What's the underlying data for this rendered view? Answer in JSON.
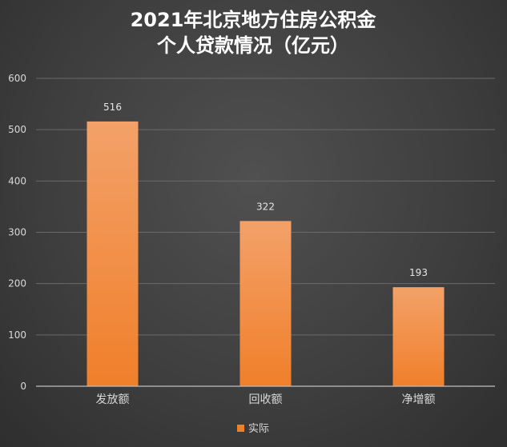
{
  "chart_data": {
    "type": "bar",
    "title_lines": [
      "2021年北京地方住房公积金",
      "个人贷款情况（亿元）"
    ],
    "categories": [
      "发放额",
      "回收额",
      "净增额"
    ],
    "series": [
      {
        "name": "实际",
        "values": [
          516,
          322,
          193
        ]
      }
    ],
    "ylim": [
      0,
      600
    ],
    "yticks": [
      0,
      100,
      200,
      300,
      400,
      500,
      600
    ],
    "grid": true,
    "legend_position": "bottom",
    "bar_color": "#f07f2a",
    "bar_color_light": "#f3a169",
    "data_labels": true
  }
}
